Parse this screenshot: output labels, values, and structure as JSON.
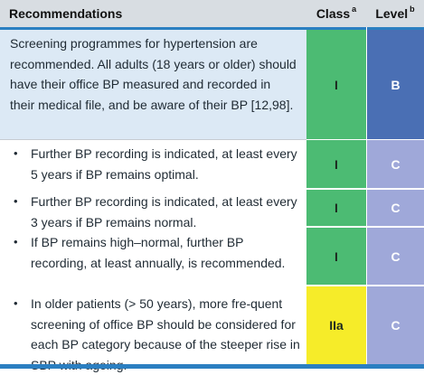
{
  "header": {
    "recommendations": "Recommendations",
    "class_label": "Class",
    "class_sup": "a",
    "level_label": "Level",
    "level_sup": "b"
  },
  "rows": [
    {
      "text": "Screening programmes for hypertension are recommended. All adults (18 years or older) should have their office BP measured and recorded in their medical file, and be aware of their BP [12,98].",
      "class": "I",
      "level": "B"
    },
    {
      "text": "Further BP recording is indicated, at least every 5 years if BP remains optimal.",
      "class": "I",
      "level": "C"
    },
    {
      "text": "Further BP recording is indicated, at least every 3 years if BP remains normal.",
      "class": "I",
      "level": "C"
    },
    {
      "text": "If BP remains high–normal, further BP recording, at least annually, is recommended.",
      "class": "I",
      "level": "C"
    },
    {
      "text": "In older patients (> 50 years), more fre-quent screening of office BP should be considered for each BP category because of the steeper rise in SBP with ageing.",
      "class": "IIa",
      "level": "C"
    }
  ],
  "bullet_glyph": "•",
  "colors": {
    "header_bg": "#d8dde2",
    "accent_blue": "#2b7fc1",
    "first_row_bg": "#dce9f5",
    "class_I": "#4cbb73",
    "class_IIa": "#f6ec29",
    "level_B": "#4a6fb4",
    "level_C": "#9fa8d9"
  }
}
